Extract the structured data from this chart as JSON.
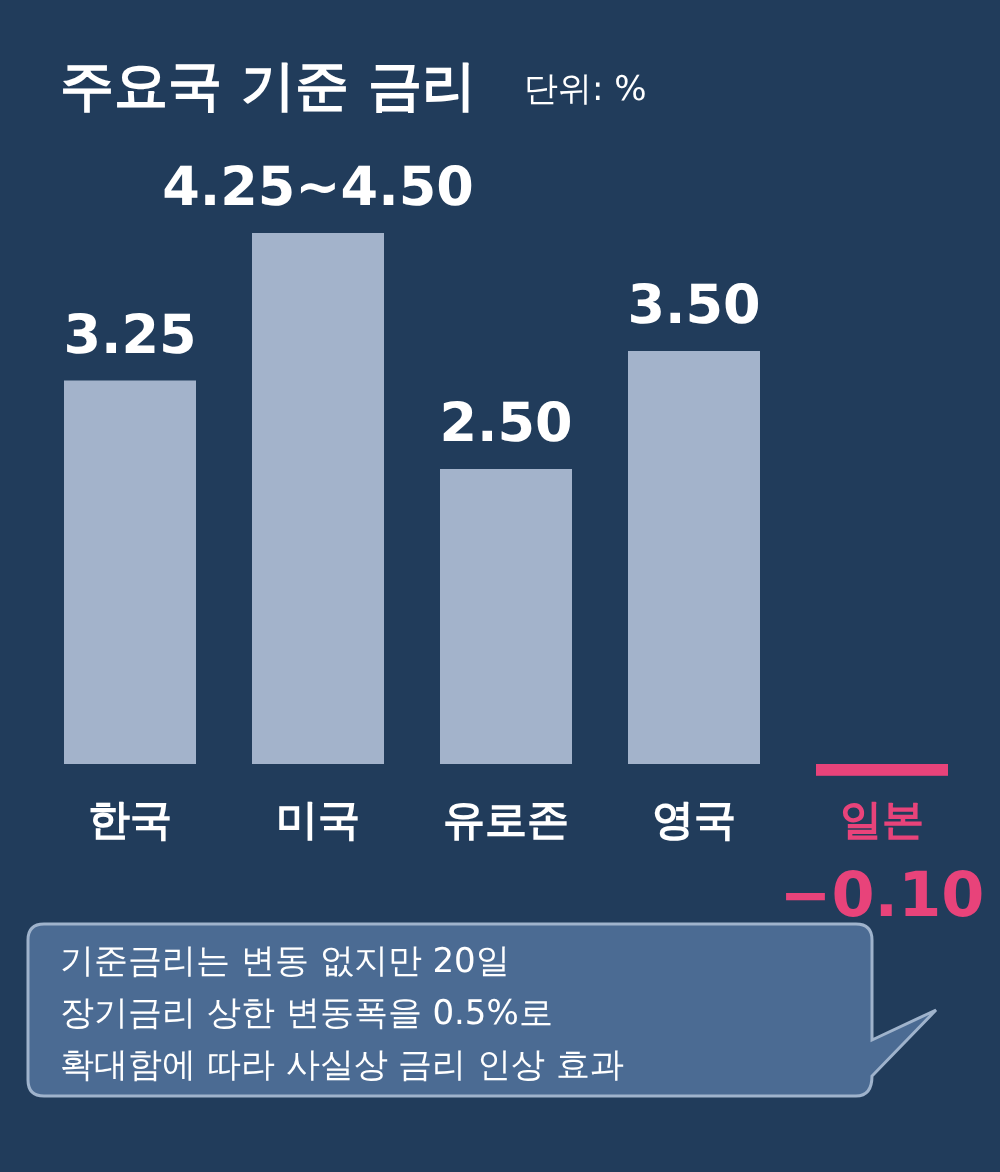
{
  "chart_data": {
    "type": "bar",
    "title": "주요국 기준 금리",
    "subtitle": "단위: %",
    "categories": [
      "한국",
      "미국",
      "유로존",
      "영국",
      "일본"
    ],
    "values": [
      3.25,
      4.5,
      2.5,
      3.5,
      -0.1
    ],
    "colors": [
      "#a3b3cb",
      "#a3b3cb",
      "#a3b3cb",
      "#a3b3cb",
      "#e8437a"
    ],
    "value_labels": [
      "3.25",
      "4.25~4.50",
      "2.50",
      "3.50",
      "−0.10"
    ],
    "annotations": [
      "기준금리는 변동 없지만 20일\n장기금리 상한 변동폭을 0.5%로\n확대함에 따라 사실상 금리 인상 효과"
    ]
  }
}
